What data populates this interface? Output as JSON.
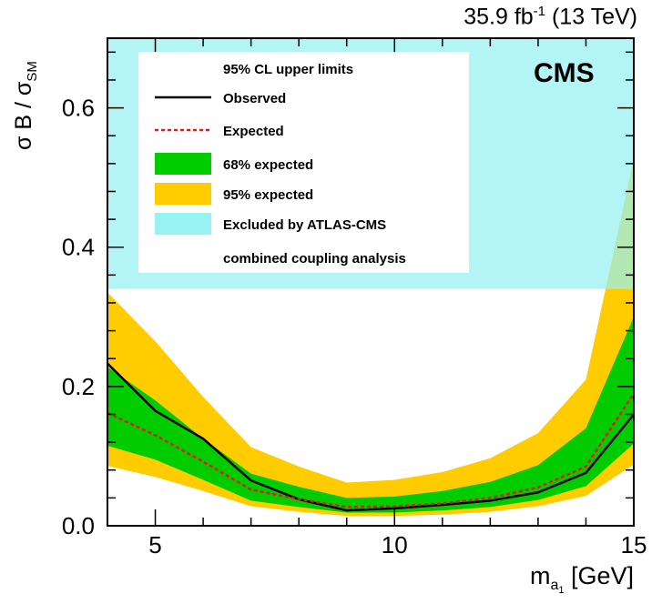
{
  "header": {
    "lumi_prefix": "35.9 fb",
    "lumi_sup": "-1",
    "lumi_energy": " (13 TeV)",
    "cms_label": "CMS"
  },
  "axis_labels": {
    "y_prefix": "σ B / σ",
    "y_sub": "SM",
    "x_main": "m",
    "x_sub": "a",
    "x_subsub": "1",
    "x_unit": " [GeV]"
  },
  "legend": {
    "title": "95% CL upper limits",
    "entries": [
      {
        "label": "Observed",
        "kind": "line",
        "color": "#000000"
      },
      {
        "label": "Expected",
        "kind": "dashed",
        "color": "#e31a1c"
      },
      {
        "label": "68% expected",
        "kind": "box",
        "color": "#00cc00"
      },
      {
        "label": "95% expected",
        "kind": "box",
        "color": "#ffcc00"
      },
      {
        "label": "Excluded by ATLAS-CMS",
        "kind": "box",
        "color": "#99f2f2"
      }
    ],
    "extra_line": "combined coupling analysis"
  },
  "chart_data": {
    "type": "line",
    "x_unit_label": "m_a1 [GeV]",
    "xlim": [
      4,
      15
    ],
    "ylim": [
      0.0,
      0.7
    ],
    "x_ticks": [
      "5",
      "10",
      "15"
    ],
    "y_ticks": [
      "0.0",
      "0.2",
      "0.4",
      "0.6"
    ],
    "excluded_region": {
      "y_min": 0.34,
      "y_max": 0.7,
      "color": "#99f2f2"
    },
    "x": [
      4,
      5,
      6,
      7,
      8,
      9,
      10,
      11,
      12,
      13,
      14,
      15
    ],
    "series": [
      {
        "name": "Observed",
        "color": "#000000",
        "values": [
          0.233,
          0.165,
          0.125,
          0.065,
          0.038,
          0.022,
          0.025,
          0.03,
          0.036,
          0.048,
          0.076,
          0.16
        ]
      },
      {
        "name": "Expected",
        "color": "#e31a1c",
        "values": [
          0.162,
          0.13,
          0.092,
          0.052,
          0.038,
          0.027,
          0.028,
          0.032,
          0.04,
          0.055,
          0.085,
          0.19
        ]
      }
    ],
    "bands": [
      {
        "name": "95% expected",
        "color": "#ffcc00",
        "low": [
          0.086,
          0.07,
          0.05,
          0.028,
          0.02,
          0.014,
          0.014,
          0.016,
          0.02,
          0.028,
          0.043,
          0.088
        ],
        "high": [
          0.335,
          0.265,
          0.185,
          0.113,
          0.085,
          0.062,
          0.066,
          0.077,
          0.097,
          0.133,
          0.21,
          0.527
        ]
      },
      {
        "name": "68% expected",
        "color": "#00cc00",
        "low": [
          0.115,
          0.095,
          0.066,
          0.036,
          0.027,
          0.019,
          0.019,
          0.022,
          0.027,
          0.037,
          0.057,
          0.118
        ],
        "high": [
          0.228,
          0.18,
          0.125,
          0.075,
          0.056,
          0.04,
          0.042,
          0.05,
          0.063,
          0.087,
          0.14,
          0.3
        ]
      }
    ]
  }
}
